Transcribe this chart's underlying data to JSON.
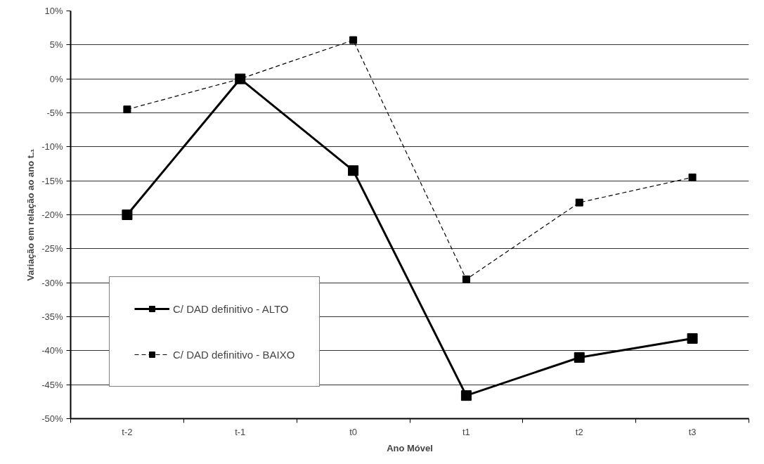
{
  "chart_data": {
    "type": "line",
    "xlabel": "Ano Móvel",
    "ylabel": "Variação em relação ao ano t₋₁",
    "categories": [
      "t-2",
      "t-1",
      "t0",
      "t1",
      "t2",
      "t3"
    ],
    "series": [
      {
        "name": "C/ DAD definitivo - ALTO",
        "color": "#000000",
        "line_style": "solid",
        "values": [
          -20,
          0,
          -13.5,
          -46.6,
          -41.0,
          -38.2
        ]
      },
      {
        "name": "C/ DAD definitivo - BAIXO",
        "color": "#000000",
        "line_style": "dashed",
        "values": [
          -4.5,
          0,
          5.7,
          -29.5,
          -18.2,
          -14.5
        ]
      }
    ],
    "ylim": [
      -50,
      10
    ],
    "yticks": [
      {
        "value": -50,
        "label": "-50%"
      },
      {
        "value": -45,
        "label": "-45%"
      },
      {
        "value": -40,
        "label": "-40%"
      },
      {
        "value": -35,
        "label": "-35%"
      },
      {
        "value": -30,
        "label": "-30%"
      },
      {
        "value": -25,
        "label": "-25%"
      },
      {
        "value": -20,
        "label": "-20%"
      },
      {
        "value": -15,
        "label": "-15%"
      },
      {
        "value": -10,
        "label": "-10%"
      },
      {
        "value": -5,
        "label": "-5%"
      },
      {
        "value": 0,
        "label": "0%"
      },
      {
        "value": 5,
        "label": "5%"
      },
      {
        "value": 10,
        "label": "10%"
      }
    ],
    "grid": "y",
    "legend": "bottom left",
    "marker": "square"
  }
}
